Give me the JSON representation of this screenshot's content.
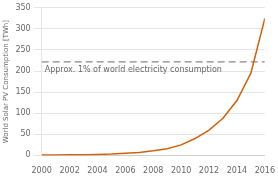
{
  "chart_data": {
    "type": "line",
    "ylabel": "World Solar PV Consumption [TWh]",
    "x": [
      2000,
      2001,
      2002,
      2003,
      2004,
      2005,
      2006,
      2007,
      2008,
      2009,
      2010,
      2011,
      2012,
      2013,
      2014,
      2015,
      2016
    ],
    "values": [
      0.8,
      1.0,
      1.3,
      1.8,
      2.4,
      3.3,
      5.0,
      7.0,
      11.0,
      16.0,
      25.0,
      40.0,
      60.0,
      88.0,
      130.0,
      195.0,
      325.0
    ],
    "color": "#d4600a",
    "xlim": [
      2000,
      2016
    ],
    "xticks": [
      2000,
      2002,
      2004,
      2006,
      2008,
      2010,
      2012,
      2014,
      2016
    ],
    "ylim": [
      0,
      350
    ],
    "yticks": [
      0,
      50,
      100,
      150,
      200,
      250,
      300,
      350
    ],
    "grid": "y",
    "annotations": [
      {
        "y": 222,
        "label": "Approx. 1% of world electricity consumption",
        "color": "#888888",
        "line_style": "dashed"
      }
    ]
  }
}
